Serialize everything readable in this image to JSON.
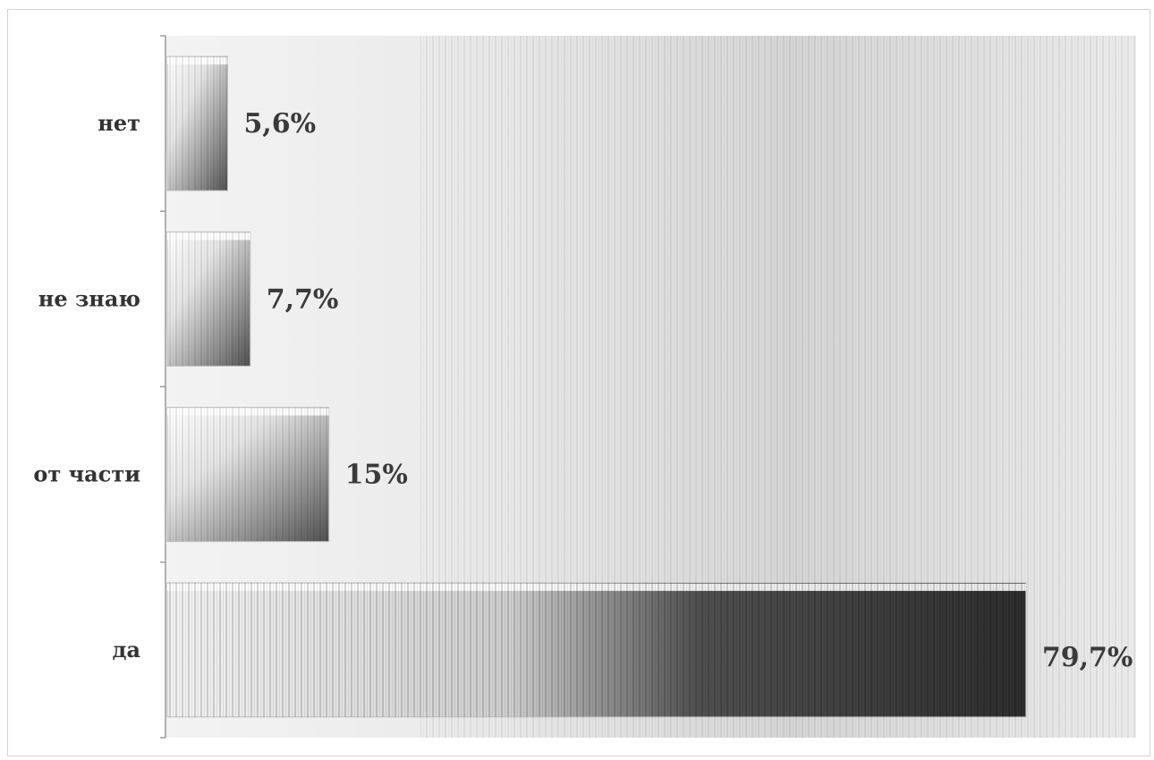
{
  "chart_data": {
    "type": "bar",
    "orientation": "horizontal",
    "categories": [
      "нет",
      "не знаю",
      "от части",
      "да"
    ],
    "values": [
      5.6,
      7.7,
      15,
      79.7
    ],
    "value_labels": [
      "5,6%",
      "7,7%",
      "15%",
      "79,7%"
    ],
    "unit": "%",
    "xlim": [
      0,
      100
    ],
    "grid": false,
    "legend": "none"
  },
  "colors": {
    "bar_light": "#f2f2f2",
    "bar_mid": "#8c8c8c",
    "bar_dark": "#2e2e2e",
    "axis": "#9a9a9a",
    "text": "#333333"
  }
}
